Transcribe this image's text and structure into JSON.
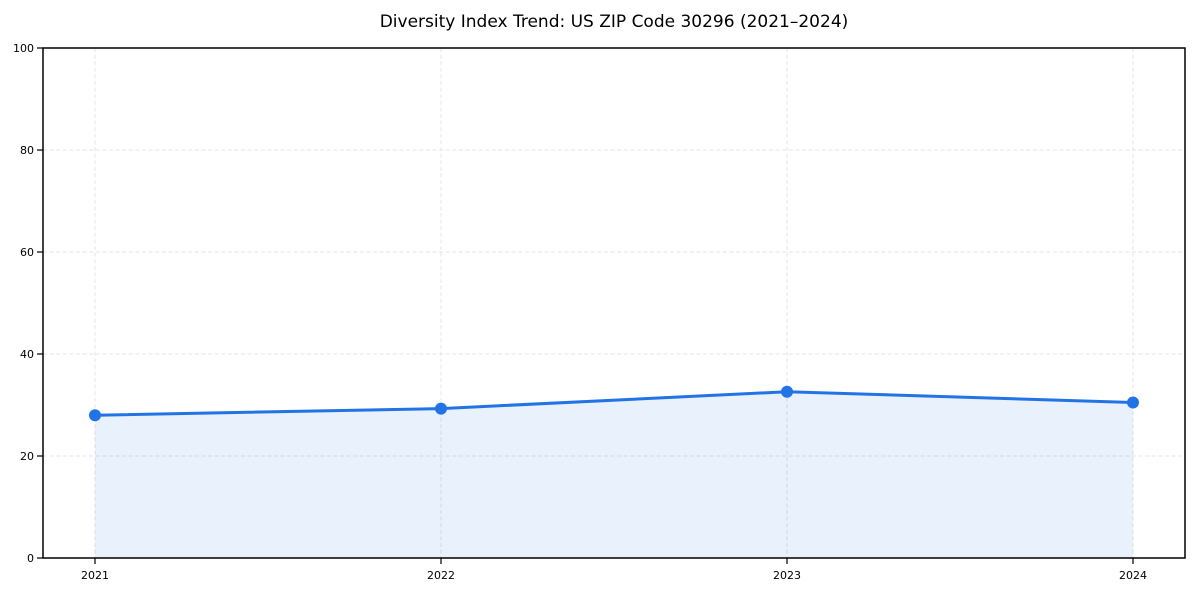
{
  "page": {
    "background": "#ffffff"
  },
  "chart_data": {
    "type": "area",
    "title": "Diversity Index Trend: US ZIP Code 30296 (2021–2024)",
    "x": [
      "2021",
      "2022",
      "2023",
      "2024"
    ],
    "series": [
      {
        "name": "Diversity Index",
        "values": [
          28.0,
          29.3,
          32.6,
          30.5
        ]
      }
    ],
    "xlabel": "",
    "ylabel": "",
    "ylim": [
      0,
      100
    ],
    "yticks": [
      0,
      20,
      40,
      60,
      80,
      100
    ],
    "grid": "dashed",
    "legend": "none",
    "colors": {
      "line": "#2273e6",
      "marker": "#2273e6",
      "fill": "#2273e6",
      "fill_opacity": 0.1,
      "grid": "#e4e4e4",
      "axis": "#000000",
      "text": "#000000"
    }
  }
}
